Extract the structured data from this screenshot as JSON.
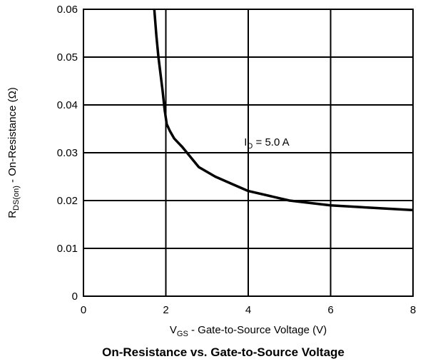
{
  "chart_data": {
    "type": "line",
    "title": "On-Resistance vs. Gate-to-Source Voltage",
    "xlabel": {
      "main": "V",
      "sub": "GS",
      "rest": " - Gate-to-Source Voltage (V)"
    },
    "ylabel": {
      "main": "R",
      "sub": "DS(on)",
      "rest": " - On-Resistance (Ω)"
    },
    "xlim": [
      0,
      8
    ],
    "ylim": [
      0,
      0.06
    ],
    "x_ticks": [
      0,
      2,
      4,
      6,
      8
    ],
    "x_tick_labels": [
      "0",
      "2",
      "4",
      "6",
      "8"
    ],
    "y_ticks": [
      0,
      0.01,
      0.02,
      0.03,
      0.04,
      0.05,
      0.06
    ],
    "y_tick_labels": [
      "0",
      "0.01",
      "0.02",
      "0.03",
      "0.04",
      "0.05",
      "0.06"
    ],
    "grid": true,
    "annotation": {
      "main": "I",
      "sub": "D",
      "rest": " = 5.0 A",
      "x": 3.9,
      "y": 0.0315
    },
    "series": [
      {
        "x": [
          1.72,
          1.77,
          1.82,
          1.87,
          1.92,
          1.97,
          2.02,
          2.1,
          2.2,
          2.4,
          2.8,
          3.2,
          3.6,
          4.0,
          5.0,
          6.0,
          7.0,
          8.0
        ],
        "y": [
          0.06,
          0.0545,
          0.05,
          0.0465,
          0.043,
          0.039,
          0.036,
          0.0345,
          0.033,
          0.0312,
          0.027,
          0.025,
          0.0235,
          0.022,
          0.02,
          0.019,
          0.0185,
          0.018
        ]
      }
    ]
  }
}
